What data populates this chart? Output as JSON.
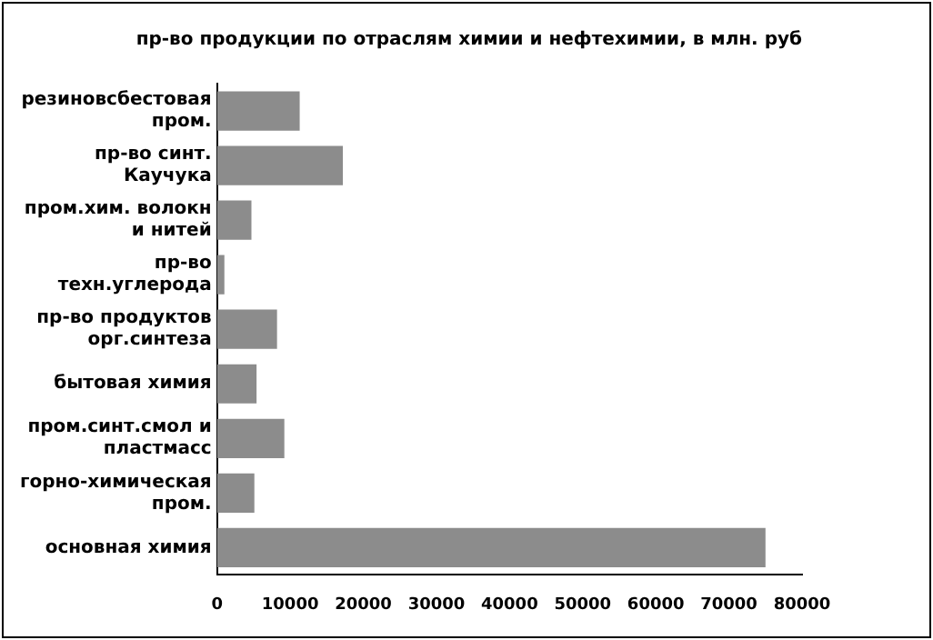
{
  "chart_data": {
    "type": "bar",
    "orientation": "horizontal",
    "title": "пр-во продукции по отраслям химии и нефтехимии, в млн. руб",
    "categories": [
      "резиновсбестовая пром.",
      "пр-во синт. Каучука",
      "пром.хим. волокн и нитей",
      "пр-во техн.углерода",
      "пр-во продуктов орг.синтеза",
      "бытовая химия",
      "пром.синт.смол и пластмасс",
      "горно-химическая пром.",
      "основная химия"
    ],
    "values": [
      11300,
      17200,
      4700,
      1000,
      8200,
      5400,
      9200,
      5100,
      75000
    ],
    "color": "#8c8c8c",
    "xlim": [
      0,
      80000
    ],
    "xticks": [
      0,
      10000,
      20000,
      30000,
      40000,
      50000,
      60000,
      70000,
      80000
    ],
    "grid": false,
    "legend": false
  }
}
